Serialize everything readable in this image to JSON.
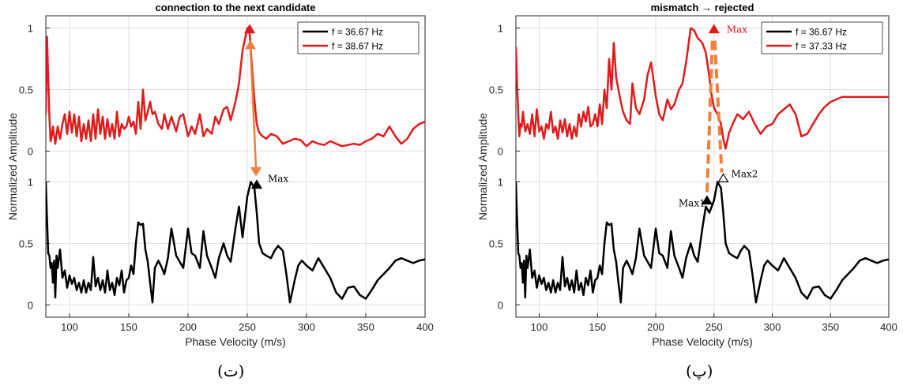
{
  "chart_data": [
    {
      "type": "line",
      "title": "connection to the next candidate",
      "xlabel": "Phase Velocity (m/s)",
      "ylabel": "Normalized Amplitude",
      "xlim": [
        80,
        400
      ],
      "x_ticks": [
        100,
        150,
        200,
        250,
        300,
        350,
        400
      ],
      "y_ticks_top": [
        "0",
        "0.5",
        "1"
      ],
      "y_ticks_bottom": [
        "0",
        "0.5",
        "1"
      ],
      "grid": true,
      "legend_position": "top-right",
      "panel_label": "(ت)",
      "series": [
        {
          "name": "f = 36.67 Hz",
          "color": "#000000",
          "offset": 0,
          "x": [
            80,
            81,
            82,
            83,
            84,
            85,
            86,
            87,
            88,
            89,
            90,
            92,
            94,
            96,
            98,
            100,
            102,
            104,
            106,
            108,
            110,
            112,
            114,
            116,
            118,
            120,
            122,
            124,
            126,
            128,
            130,
            132,
            134,
            136,
            138,
            140,
            142,
            144,
            146,
            148,
            150,
            152,
            154,
            156,
            158,
            160,
            162,
            164,
            166,
            168,
            170,
            172,
            175,
            178,
            180,
            183,
            186,
            190,
            193,
            196,
            200,
            203,
            206,
            210,
            213,
            216,
            220,
            223,
            226,
            230,
            233,
            236,
            240,
            243,
            246,
            250,
            253,
            256,
            258,
            260,
            263,
            266,
            270,
            273,
            276,
            280,
            283,
            286,
            290,
            293,
            296,
            300,
            305,
            310,
            315,
            320,
            325,
            330,
            335,
            340,
            345,
            350,
            355,
            360,
            365,
            370,
            375,
            380,
            385,
            390,
            395,
            400
          ],
          "y": [
            1.0,
            0.7,
            0.42,
            0.4,
            0.3,
            0.34,
            0.18,
            0.36,
            0.06,
            0.4,
            0.3,
            0.45,
            0.22,
            0.28,
            0.14,
            0.24,
            0.17,
            0.22,
            0.12,
            0.18,
            0.1,
            0.2,
            0.1,
            0.18,
            0.12,
            0.39,
            0.15,
            0.22,
            0.12,
            0.2,
            0.1,
            0.28,
            0.12,
            0.18,
            0.08,
            0.22,
            0.16,
            0.28,
            0.1,
            0.2,
            0.22,
            0.32,
            0.25,
            0.5,
            0.67,
            0.65,
            0.66,
            0.45,
            0.35,
            0.18,
            0.02,
            0.3,
            0.36,
            0.3,
            0.25,
            0.38,
            0.62,
            0.4,
            0.35,
            0.3,
            0.62,
            0.42,
            0.4,
            0.3,
            0.6,
            0.4,
            0.3,
            0.22,
            0.38,
            0.5,
            0.4,
            0.35,
            0.62,
            0.8,
            0.55,
            0.88,
            1.0,
            0.95,
            0.75,
            0.5,
            0.42,
            0.4,
            0.38,
            0.44,
            0.48,
            0.44,
            0.25,
            0.02,
            0.2,
            0.32,
            0.36,
            0.32,
            0.28,
            0.38,
            0.3,
            0.22,
            0.1,
            0.05,
            0.14,
            0.15,
            0.08,
            0.05,
            0.12,
            0.2,
            0.25,
            0.3,
            0.36,
            0.38,
            0.36,
            0.34,
            0.36,
            0.37
          ]
        },
        {
          "name": "f = 38.67 Hz",
          "color": "#e01b1b",
          "offset": 1.25,
          "x": [
            80,
            81,
            82,
            83,
            84,
            85,
            86,
            88,
            90,
            92,
            94,
            96,
            98,
            100,
            102,
            104,
            106,
            108,
            110,
            112,
            114,
            116,
            118,
            120,
            122,
            124,
            126,
            128,
            130,
            132,
            134,
            136,
            138,
            140,
            142,
            144,
            146,
            148,
            150,
            152,
            154,
            156,
            158,
            160,
            162,
            164,
            166,
            168,
            170,
            172,
            175,
            178,
            180,
            183,
            186,
            190,
            193,
            196,
            200,
            203,
            206,
            210,
            213,
            216,
            220,
            223,
            226,
            230,
            233,
            236,
            240,
            243,
            246,
            250,
            252,
            254,
            256,
            258,
            260,
            263,
            266,
            270,
            275,
            280,
            285,
            290,
            295,
            300,
            305,
            310,
            315,
            320,
            325,
            330,
            335,
            340,
            345,
            350,
            355,
            360,
            365,
            370,
            375,
            380,
            385,
            390,
            395,
            400
          ],
          "y": [
            0.3,
            0.93,
            0.6,
            0.28,
            0.08,
            0.12,
            0.2,
            0.06,
            0.2,
            0.1,
            0.22,
            0.3,
            0.14,
            0.32,
            0.15,
            0.3,
            0.12,
            0.28,
            0.08,
            0.22,
            0.1,
            0.25,
            0.08,
            0.3,
            0.1,
            0.34,
            0.14,
            0.28,
            0.1,
            0.26,
            0.12,
            0.22,
            0.1,
            0.32,
            0.12,
            0.22,
            0.18,
            0.2,
            0.28,
            0.2,
            0.24,
            0.14,
            0.4,
            0.18,
            0.5,
            0.25,
            0.32,
            0.4,
            0.3,
            0.32,
            0.22,
            0.18,
            0.3,
            0.18,
            0.28,
            0.16,
            0.28,
            0.3,
            0.12,
            0.2,
            0.14,
            0.3,
            0.12,
            0.18,
            0.14,
            0.28,
            0.22,
            0.34,
            0.36,
            0.25,
            0.4,
            0.55,
            0.82,
            1.0,
            0.95,
            0.68,
            0.42,
            0.22,
            0.15,
            0.12,
            0.1,
            0.14,
            0.12,
            0.06,
            0.08,
            0.1,
            0.09,
            0.04,
            0.08,
            0.06,
            0.05,
            0.08,
            0.06,
            0.04,
            0.05,
            0.06,
            0.05,
            0.08,
            0.1,
            0.14,
            0.12,
            0.2,
            0.12,
            0.06,
            0.1,
            0.18,
            0.22,
            0.24
          ]
        }
      ],
      "annotations": [
        {
          "text": "Max",
          "x": 258,
          "y": 1.0
        }
      ]
    },
    {
      "type": "line",
      "title": "mismatch → rejected",
      "xlabel": "Phase Velocity (m/s)",
      "ylabel": "Normalized Amplitude",
      "xlim": [
        80,
        400
      ],
      "x_ticks": [
        100,
        150,
        200,
        250,
        300,
        350,
        400
      ],
      "y_ticks_top": [
        "0",
        "0.5",
        "1"
      ],
      "y_ticks_bottom": [
        "0",
        "0.5",
        "1"
      ],
      "grid": true,
      "legend_position": "top-right",
      "panel_label": "(پ)",
      "series": [
        {
          "name": "f = 36.67 Hz",
          "color": "#000000",
          "offset": 0,
          "x": [
            80,
            81,
            82,
            83,
            84,
            85,
            86,
            87,
            88,
            89,
            90,
            92,
            94,
            96,
            98,
            100,
            102,
            104,
            106,
            108,
            110,
            112,
            114,
            116,
            118,
            120,
            122,
            124,
            126,
            128,
            130,
            132,
            134,
            136,
            138,
            140,
            142,
            144,
            146,
            148,
            150,
            152,
            154,
            156,
            158,
            160,
            162,
            164,
            166,
            168,
            170,
            172,
            175,
            178,
            180,
            183,
            186,
            190,
            193,
            196,
            200,
            203,
            206,
            210,
            213,
            216,
            220,
            223,
            226,
            230,
            233,
            236,
            240,
            243,
            246,
            250,
            253,
            256,
            258,
            260,
            263,
            266,
            270,
            273,
            276,
            280,
            283,
            286,
            290,
            293,
            296,
            300,
            305,
            310,
            315,
            320,
            325,
            330,
            335,
            340,
            345,
            350,
            355,
            360,
            365,
            370,
            375,
            380,
            385,
            390,
            395,
            400
          ],
          "y": [
            1.0,
            0.7,
            0.42,
            0.4,
            0.3,
            0.34,
            0.18,
            0.36,
            0.06,
            0.4,
            0.3,
            0.45,
            0.22,
            0.28,
            0.14,
            0.24,
            0.17,
            0.22,
            0.12,
            0.18,
            0.1,
            0.2,
            0.1,
            0.18,
            0.12,
            0.39,
            0.15,
            0.22,
            0.12,
            0.2,
            0.1,
            0.28,
            0.12,
            0.18,
            0.08,
            0.22,
            0.16,
            0.28,
            0.1,
            0.2,
            0.22,
            0.32,
            0.25,
            0.5,
            0.67,
            0.65,
            0.66,
            0.45,
            0.35,
            0.18,
            0.02,
            0.3,
            0.36,
            0.3,
            0.25,
            0.38,
            0.62,
            0.4,
            0.35,
            0.3,
            0.62,
            0.42,
            0.4,
            0.3,
            0.6,
            0.4,
            0.3,
            0.22,
            0.38,
            0.5,
            0.4,
            0.35,
            0.62,
            0.8,
            0.75,
            0.85,
            1.0,
            0.95,
            0.75,
            0.5,
            0.42,
            0.4,
            0.38,
            0.44,
            0.48,
            0.44,
            0.25,
            0.02,
            0.2,
            0.32,
            0.36,
            0.32,
            0.28,
            0.38,
            0.3,
            0.22,
            0.1,
            0.05,
            0.14,
            0.15,
            0.08,
            0.05,
            0.12,
            0.2,
            0.25,
            0.3,
            0.36,
            0.38,
            0.36,
            0.34,
            0.36,
            0.37
          ]
        },
        {
          "name": "f = 37.33 Hz",
          "color": "#e01b1b",
          "offset": 1.25,
          "x": [
            80,
            81,
            82,
            83,
            84,
            85,
            86,
            88,
            90,
            92,
            94,
            96,
            98,
            100,
            102,
            104,
            106,
            108,
            110,
            112,
            114,
            116,
            118,
            120,
            122,
            124,
            126,
            128,
            130,
            132,
            134,
            136,
            138,
            140,
            142,
            144,
            146,
            148,
            150,
            152,
            154,
            156,
            158,
            160,
            162,
            164,
            166,
            168,
            170,
            172,
            175,
            178,
            180,
            183,
            186,
            190,
            193,
            196,
            200,
            203,
            206,
            210,
            213,
            216,
            220,
            223,
            226,
            230,
            233,
            236,
            240,
            243,
            246,
            248,
            250,
            253,
            256,
            258,
            260,
            263,
            266,
            270,
            275,
            280,
            285,
            290,
            295,
            300,
            305,
            310,
            315,
            320,
            325,
            330,
            335,
            340,
            345,
            350,
            355,
            360,
            365,
            370,
            375,
            380,
            385,
            390,
            395,
            400
          ],
          "y": [
            0.85,
            0.55,
            0.3,
            0.12,
            0.22,
            0.2,
            0.32,
            0.16,
            0.22,
            0.14,
            0.3,
            0.12,
            0.34,
            0.16,
            0.2,
            0.1,
            0.22,
            0.18,
            0.32,
            0.15,
            0.2,
            0.1,
            0.25,
            0.15,
            0.26,
            0.12,
            0.22,
            0.1,
            0.2,
            0.12,
            0.3,
            0.2,
            0.32,
            0.24,
            0.36,
            0.2,
            0.22,
            0.3,
            0.2,
            0.38,
            0.22,
            0.5,
            0.35,
            0.75,
            0.5,
            0.88,
            0.6,
            0.5,
            0.4,
            0.32,
            0.25,
            0.22,
            0.55,
            0.35,
            0.3,
            0.42,
            0.62,
            0.72,
            0.45,
            0.3,
            0.25,
            0.42,
            0.34,
            0.38,
            0.5,
            0.55,
            0.72,
            1.0,
            0.98,
            0.92,
            0.88,
            0.8,
            0.6,
            0.45,
            0.35,
            0.3,
            0.22,
            0.1,
            0.02,
            0.15,
            0.22,
            0.3,
            0.26,
            0.32,
            0.22,
            0.14,
            0.2,
            0.22,
            0.3,
            0.34,
            0.38,
            0.3,
            0.12,
            0.14,
            0.22,
            0.3,
            0.36,
            0.4,
            0.42,
            0.44,
            0.44,
            0.44,
            0.44,
            0.44,
            0.44,
            0.44,
            0.44,
            0.44
          ]
        }
      ],
      "annotations": [
        {
          "text": "Max",
          "x": 250,
          "y": 1.0
        },
        {
          "text": "Max1",
          "x": 244,
          "y": 0.82
        },
        {
          "text": "Max2",
          "x": 258,
          "y": 1.0
        }
      ]
    }
  ],
  "colors": {
    "axis": "#262626",
    "grid": "#e0e0e0",
    "arrow": "#f07f3a"
  }
}
